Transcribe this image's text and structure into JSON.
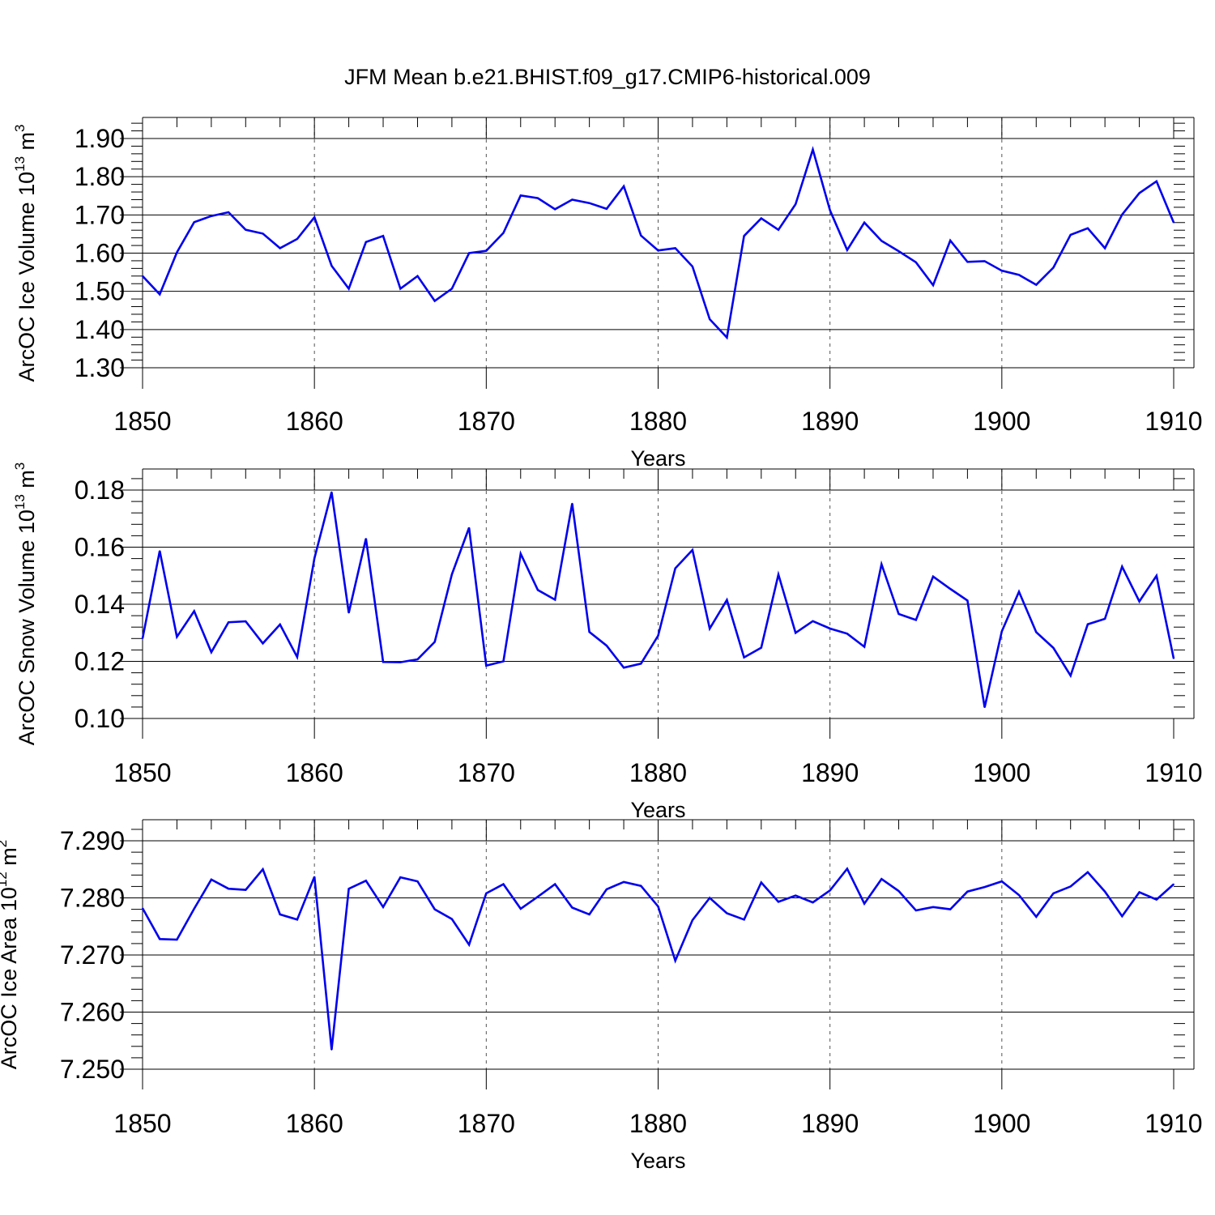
{
  "title": "JFM Mean b.e21.BHIST.f09_g17.CMIP6-historical.009",
  "colors": {
    "line": "#0000ee",
    "axis": "#000000",
    "grid": "#555555",
    "background": "#ffffff"
  },
  "chart_data": [
    {
      "type": "line",
      "ylabel": "ArcOC Ice Volume 10",
      "ylabel_sup": "13",
      "ylabel_unit": " m",
      "ylabel_unit_sup": "3",
      "xlabel": "Years",
      "xlim": [
        1850,
        1910
      ],
      "ylim": [
        1.3,
        1.92
      ],
      "x_ticks": [
        1850,
        1860,
        1870,
        1880,
        1890,
        1900,
        1910
      ],
      "x_tick_labels": [
        "1850",
        "1860",
        "1870",
        "1880",
        "1890",
        "1900",
        "1910"
      ],
      "y_ticks": [
        1.3,
        1.4,
        1.5,
        1.6,
        1.7,
        1.8,
        1.9
      ],
      "y_tick_labels": [
        "1.30",
        "1.40",
        "1.50",
        "1.60",
        "1.70",
        "1.80",
        "1.90"
      ],
      "y_minor_step": 0.02,
      "x_minor_step": 2,
      "grid": "vertical dashed at major x ticks",
      "series": [
        {
          "name": "ArcOC Ice Volume",
          "x": [
            1850,
            1851,
            1852,
            1853,
            1854,
            1855,
            1856,
            1857,
            1858,
            1859,
            1860,
            1861,
            1862,
            1863,
            1864,
            1865,
            1866,
            1867,
            1868,
            1869,
            1870,
            1871,
            1872,
            1873,
            1874,
            1875,
            1876,
            1877,
            1878,
            1879,
            1880,
            1881,
            1882,
            1883,
            1884,
            1885,
            1886,
            1887,
            1888,
            1889,
            1890,
            1891,
            1892,
            1893,
            1894,
            1895,
            1896,
            1897,
            1898,
            1899,
            1900,
            1901,
            1902,
            1903,
            1904,
            1905,
            1906,
            1907,
            1908,
            1909,
            1910
          ],
          "values": [
            1.54,
            1.492,
            1.602,
            1.681,
            1.697,
            1.707,
            1.661,
            1.651,
            1.613,
            1.637,
            1.694,
            1.567,
            1.507,
            1.629,
            1.645,
            1.507,
            1.54,
            1.475,
            1.507,
            1.6,
            1.606,
            1.653,
            1.751,
            1.744,
            1.715,
            1.74,
            1.731,
            1.716,
            1.775,
            1.646,
            1.607,
            1.613,
            1.565,
            1.427,
            1.379,
            1.645,
            1.691,
            1.661,
            1.728,
            1.871,
            1.712,
            1.608,
            1.68,
            1.632,
            1.605,
            1.576,
            1.516,
            1.633,
            1.577,
            1.579,
            1.554,
            1.543,
            1.517,
            1.562,
            1.648,
            1.665,
            1.613,
            1.701,
            1.757,
            1.788,
            1.68
          ]
        }
      ]
    },
    {
      "type": "line",
      "ylabel": "ArcOC Snow Volume 10",
      "ylabel_sup": "13",
      "ylabel_unit": " m",
      "ylabel_unit_sup": "3",
      "xlabel": "Years",
      "xlim": [
        1850,
        1910
      ],
      "ylim": [
        0.1,
        0.1875
      ],
      "x_ticks": [
        1850,
        1860,
        1870,
        1880,
        1890,
        1900,
        1910
      ],
      "x_tick_labels": [
        "1850",
        "1860",
        "1870",
        "1880",
        "1890",
        "1900",
        "1910"
      ],
      "y_ticks": [
        0.1,
        0.12,
        0.14,
        0.16,
        0.18
      ],
      "y_tick_labels": [
        "0.10",
        "0.12",
        "0.14",
        "0.16",
        "0.18"
      ],
      "y_minor_step": 0.004,
      "x_minor_step": 2,
      "grid": "vertical dashed at major x ticks",
      "series": [
        {
          "name": "ArcOC Snow Volume",
          "x": [
            1850,
            1851,
            1852,
            1853,
            1854,
            1855,
            1856,
            1857,
            1858,
            1859,
            1860,
            1861,
            1862,
            1863,
            1864,
            1865,
            1866,
            1867,
            1868,
            1869,
            1870,
            1871,
            1872,
            1873,
            1874,
            1875,
            1876,
            1877,
            1878,
            1879,
            1880,
            1881,
            1882,
            1883,
            1884,
            1885,
            1886,
            1887,
            1888,
            1889,
            1890,
            1891,
            1892,
            1893,
            1894,
            1895,
            1896,
            1897,
            1898,
            1899,
            1900,
            1901,
            1902,
            1903,
            1904,
            1905,
            1906,
            1907,
            1908,
            1909,
            1910
          ],
          "values": [
            0.128,
            0.1587,
            0.1286,
            0.1376,
            0.1232,
            0.1337,
            0.134,
            0.1263,
            0.1329,
            0.1215,
            0.1561,
            0.1793,
            0.137,
            0.163,
            0.1198,
            0.1197,
            0.1207,
            0.1268,
            0.1505,
            0.1668,
            0.1185,
            0.12,
            0.1577,
            0.145,
            0.1416,
            0.1753,
            0.1303,
            0.1255,
            0.1178,
            0.1192,
            0.129,
            0.1526,
            0.159,
            0.1315,
            0.1415,
            0.1214,
            0.1248,
            0.1504,
            0.13,
            0.1341,
            0.1315,
            0.1297,
            0.1251,
            0.154,
            0.1366,
            0.1345,
            0.1497,
            0.1454,
            0.1413,
            0.1039,
            0.1305,
            0.1444,
            0.1302,
            0.1247,
            0.115,
            0.133,
            0.1349,
            0.1532,
            0.141,
            0.15,
            0.121
          ]
        }
      ]
    },
    {
      "type": "line",
      "ylabel": "ArcOC Ice Area 10",
      "ylabel_sup": "12",
      "ylabel_unit": " m",
      "ylabel_unit_sup": "2",
      "xlabel": "Years",
      "xlim": [
        1850,
        1910
      ],
      "ylim": [
        7.25,
        7.2935
      ],
      "x_ticks": [
        1850,
        1860,
        1870,
        1880,
        1890,
        1900,
        1910
      ],
      "x_tick_labels": [
        "1850",
        "1860",
        "1870",
        "1880",
        "1890",
        "1900",
        "1910"
      ],
      "y_ticks": [
        7.25,
        7.26,
        7.27,
        7.28,
        7.29
      ],
      "y_tick_labels": [
        "7.250",
        "7.260",
        "7.270",
        "7.280",
        "7.290"
      ],
      "y_minor_step": 0.002,
      "x_minor_step": 2,
      "grid": "vertical dashed at major x ticks",
      "series": [
        {
          "name": "ArcOC Ice Area",
          "x": [
            1850,
            1851,
            1852,
            1853,
            1854,
            1855,
            1856,
            1857,
            1858,
            1859,
            1860,
            1861,
            1862,
            1863,
            1864,
            1865,
            1866,
            1867,
            1868,
            1869,
            1870,
            1871,
            1872,
            1873,
            1874,
            1875,
            1876,
            1877,
            1878,
            1879,
            1880,
            1881,
            1882,
            1883,
            1884,
            1885,
            1886,
            1887,
            1888,
            1889,
            1890,
            1891,
            1892,
            1893,
            1894,
            1895,
            1896,
            1897,
            1898,
            1899,
            1900,
            1901,
            1902,
            1903,
            1904,
            1905,
            1906,
            1907,
            1908,
            1909,
            1910
          ],
          "values": [
            7.2782,
            7.2728,
            7.2727,
            7.2781,
            7.2832,
            7.2816,
            7.2814,
            7.285,
            7.2771,
            7.2762,
            7.2837,
            7.2534,
            7.2816,
            7.283,
            7.2784,
            7.2836,
            7.2829,
            7.278,
            7.2763,
            7.2718,
            7.2808,
            7.2824,
            7.2781,
            7.2802,
            7.2824,
            7.2783,
            7.2771,
            7.2815,
            7.2828,
            7.2821,
            7.2785,
            7.269,
            7.2761,
            7.28,
            7.2773,
            7.2762,
            7.2827,
            7.2793,
            7.2804,
            7.2792,
            7.2813,
            7.2851,
            7.279,
            7.2833,
            7.2812,
            7.2778,
            7.2784,
            7.278,
            7.2811,
            7.2819,
            7.2829,
            7.2805,
            7.2767,
            7.2808,
            7.282,
            7.2845,
            7.2811,
            7.2768,
            7.281,
            7.2797,
            7.2824
          ]
        }
      ]
    }
  ]
}
